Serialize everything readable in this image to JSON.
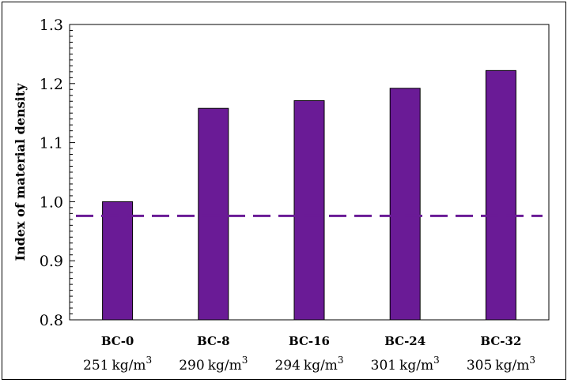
{
  "chart_data": {
    "type": "bar",
    "categories": [
      "BC-0",
      "BC-8",
      "BC-16",
      "BC-24",
      "BC-32"
    ],
    "sublabels": [
      {
        "value": "251",
        "unit": "kg/m",
        "exp": "3"
      },
      {
        "value": "290",
        "unit": "kg/m",
        "exp": "3"
      },
      {
        "value": "294",
        "unit": "kg/m",
        "exp": "3"
      },
      {
        "value": "301",
        "unit": "kg/m",
        "exp": "3"
      },
      {
        "value": "305",
        "unit": "kg/m",
        "exp": "3"
      }
    ],
    "values": [
      1.0,
      1.158,
      1.171,
      1.192,
      1.222
    ],
    "reference_line": 0.976,
    "ylabel": "Index of material density",
    "ylim": [
      0.8,
      1.3
    ],
    "yticks": [
      "0.8",
      "0.9",
      "1.0",
      "1.1",
      "1.2",
      "1.3"
    ],
    "colors": {
      "bar": "#6a1b96",
      "reference": "#6a1b96"
    },
    "grid": false,
    "legend": "none"
  }
}
